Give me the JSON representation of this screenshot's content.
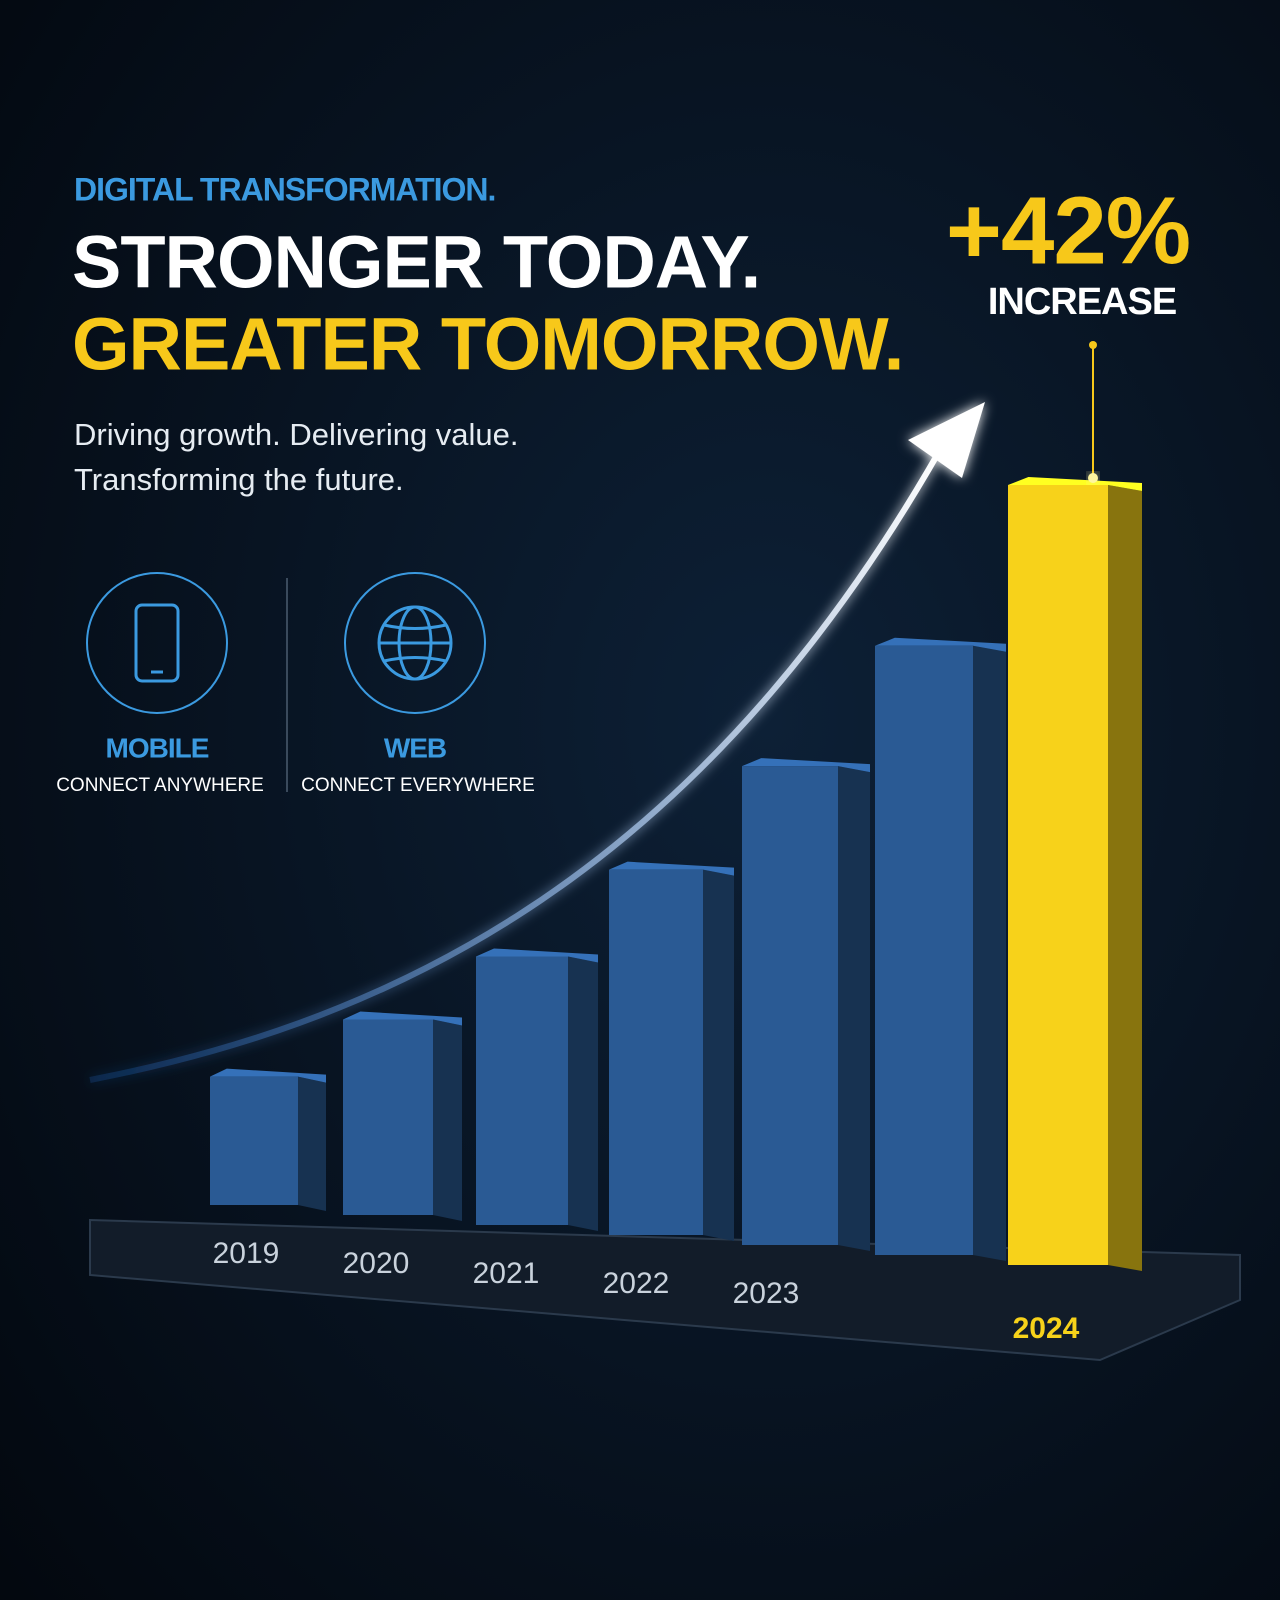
{
  "header": {
    "kicker": "DIGITAL TRANSFORMATION.",
    "headline": "STRONGER TODAY.",
    "headline_accent": "GREATER TOMORROW.",
    "subtitle_lines": [
      "Driving growth. Delivering value.",
      "Transforming the future."
    ]
  },
  "features": [
    {
      "title": "MOBILE",
      "subtitle": "CONNECT ANYWHERE"
    },
    {
      "title": "WEB",
      "subtitle": "CONNECT EVERYWHERE"
    }
  ],
  "callout": {
    "value": "+42%",
    "label": "INCREASE"
  },
  "chart_data": {
    "type": "bar",
    "categories": [
      "2019",
      "2020",
      "2021",
      "2022",
      "2023",
      null,
      "2024"
    ],
    "values": [
      130,
      198,
      272,
      370,
      485,
      617,
      790
    ],
    "colors": [
      "#2a5a94",
      "#2a5a94",
      "#2a5a94",
      "#2a5a94",
      "#2a5a94",
      "#2a5a94",
      "#f7d21a"
    ]
  }
}
